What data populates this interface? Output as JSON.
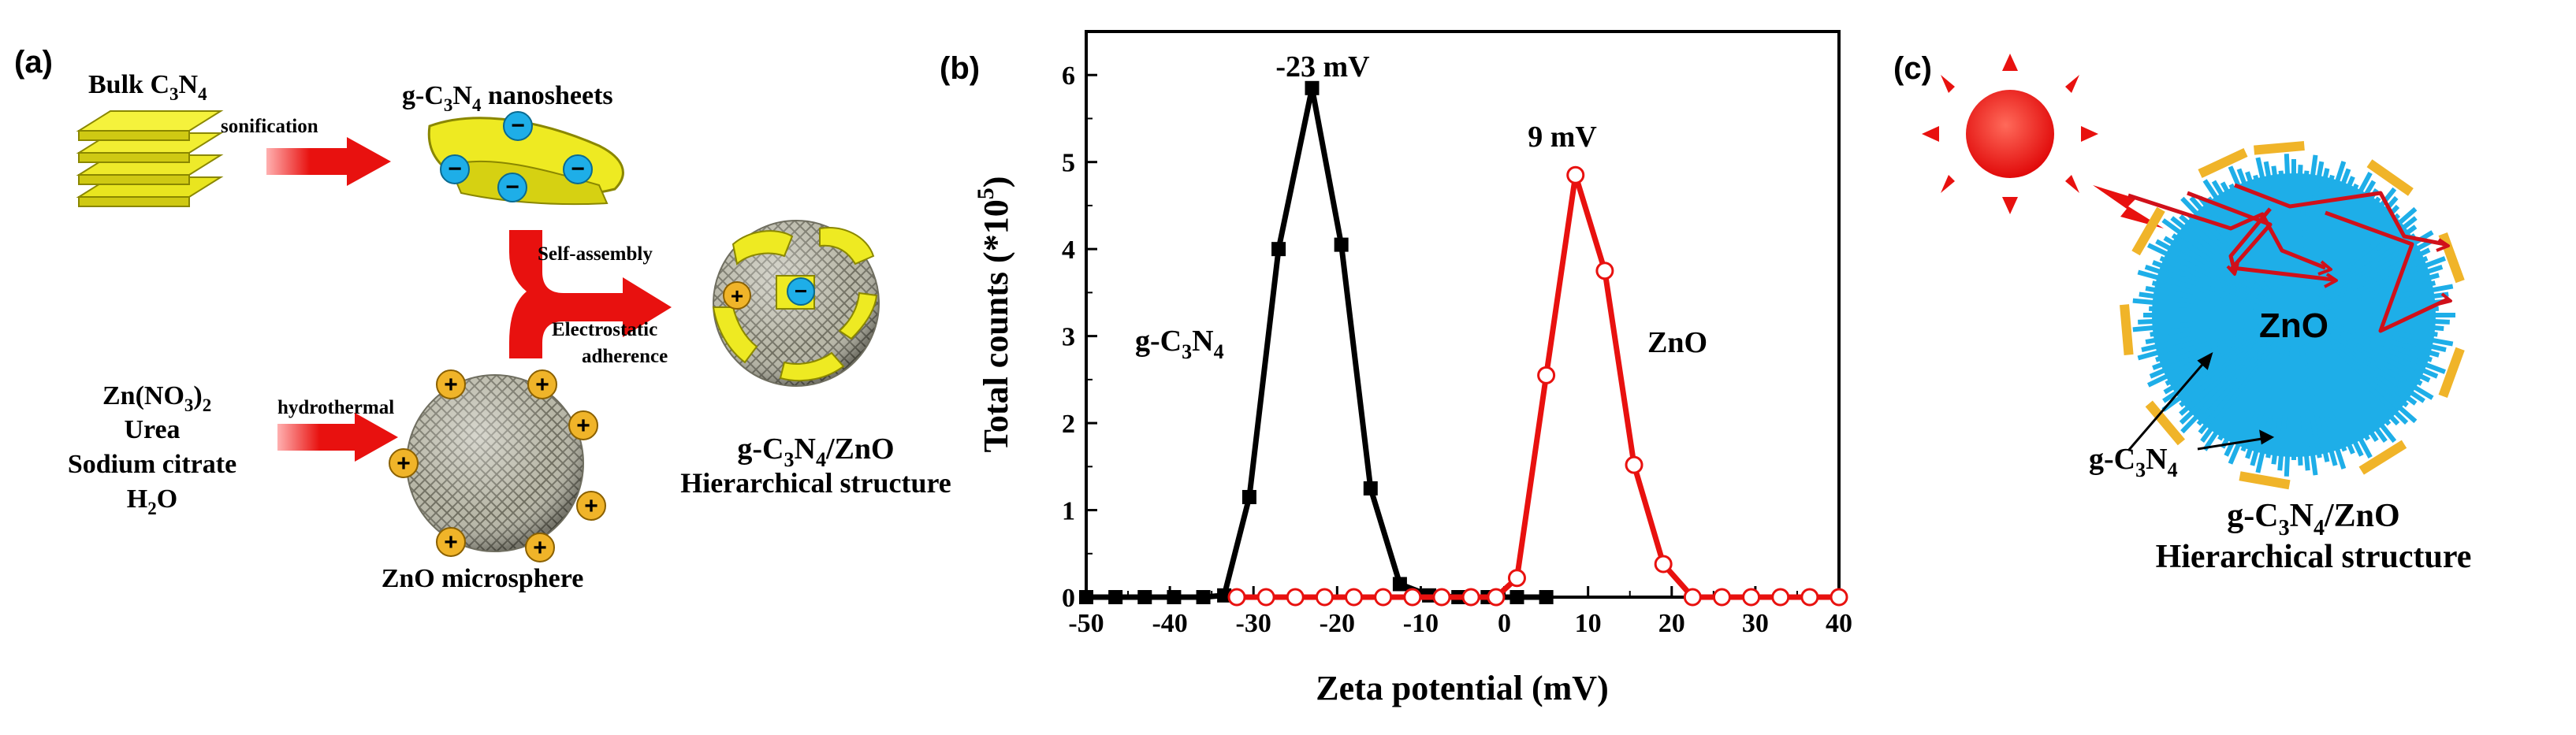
{
  "panel_a": {
    "label": "(a)",
    "bulk": {
      "prefix": "Bulk C",
      "sub1": "3",
      "mid": "N",
      "sub2": "4"
    },
    "sonification": "sonification",
    "nanosheets": {
      "p1": "g-C",
      "sub1": "3",
      "p2": "N",
      "sub2": "4",
      "p3": " nanosheets"
    },
    "self_assembly": "Self-assembly",
    "electrostatic": "Electrostatic",
    "adherence": "adherence",
    "precursors": {
      "zn": {
        "p1": "Zn(NO",
        "sub1": "3",
        "p2": ")",
        "sub2": "2"
      },
      "urea": "Urea",
      "citrate": "Sodium citrate",
      "water": {
        "p1": "H",
        "sub1": "2",
        "p2": "O"
      }
    },
    "hydrothermal": "hydrothermal",
    "microsphere": "ZnO microsphere",
    "composite": {
      "p1": "g-C",
      "sub1": "3",
      "p2": "N",
      "sub2": "4",
      "p3": "/ZnO"
    },
    "hierarchical": "Hierarchical structure",
    "neg_sign": "−",
    "pos_sign": "+"
  },
  "panel_b": {
    "label": "(b)",
    "series_label_gcn": {
      "p1": "g-C",
      "sub1": "3",
      "p2": "N",
      "sub2": "4"
    },
    "series_label_zno": "ZnO",
    "peak_label_gcn": "-23 mV",
    "peak_label_zno": "9 mV",
    "ylabel": {
      "p1": "Total counts (*10",
      "sup": "5",
      "p2": ")"
    }
  },
  "panel_c": {
    "label": "(c)",
    "zno": "ZnO",
    "gcn_label": {
      "p1": "g-C",
      "sub1": "3",
      "p2": "N",
      "sub2": "4"
    },
    "composite": {
      "p1": "g-C",
      "sub1": "3",
      "p2": "N",
      "sub2": "4",
      "p3": "/ZnO"
    },
    "hierarchical": "Hierarchical structure"
  },
  "colors": {
    "red": "#e8110f",
    "yellow": "#f2ee2a",
    "blue": "#1eaee8",
    "gold": "#f0b429",
    "zno_sphere": "#a9a89a"
  },
  "chart_data": {
    "type": "line",
    "xlabel": "Zeta potential (mV)",
    "ylabel": "Total counts (*10^5)",
    "xlim": [
      -50,
      40
    ],
    "ylim": [
      0,
      6.5
    ],
    "xticks": [
      -50,
      -40,
      -30,
      -20,
      -10,
      0,
      10,
      20,
      30,
      40
    ],
    "yticks": [
      0,
      1,
      2,
      3,
      4,
      5,
      6
    ],
    "series": [
      {
        "name": "g-C3N4",
        "color": "#000000",
        "marker": "square",
        "x": [
          -50,
          -46.5,
          -43,
          -39.5,
          -36,
          -33.5,
          -30.5,
          -27,
          -23,
          -19.5,
          -16,
          -12.5,
          -9,
          -5.5,
          -2,
          1.5,
          5
        ],
        "y": [
          0,
          0,
          0,
          0,
          0,
          0.02,
          1.15,
          4.0,
          5.85,
          4.05,
          1.25,
          0.15,
          0.02,
          0,
          0,
          0,
          0
        ]
      },
      {
        "name": "ZnO",
        "color": "#e8110f",
        "marker": "circle-open",
        "x": [
          -32,
          -28.5,
          -25,
          -21.5,
          -18,
          -14.5,
          -11,
          -7.5,
          -4,
          -1,
          1.5,
          5,
          8.5,
          12,
          15.5,
          19,
          22.5,
          26,
          29.5,
          33,
          36.5,
          40
        ],
        "y": [
          0,
          0,
          0,
          0,
          0,
          0,
          0,
          0,
          0,
          0,
          0.22,
          2.55,
          4.85,
          3.75,
          1.52,
          0.38,
          0,
          0,
          0,
          0,
          0,
          0
        ]
      }
    ]
  }
}
